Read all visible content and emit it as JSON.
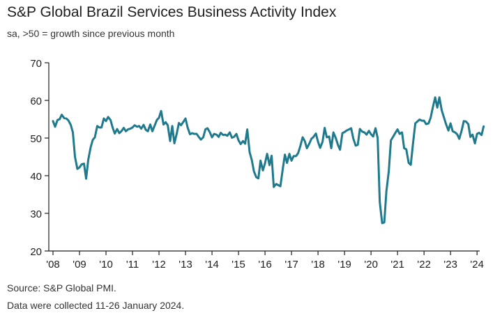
{
  "header": {
    "title": "S&P Global Brazil Services Business Activity Index",
    "subtitle": "sa, >50 = growth since previous month"
  },
  "footer": {
    "source": "Source: S&P Global PMI.",
    "note": "Data were collected 11-26 January 2024."
  },
  "colors": {
    "line": "#1e7a8c",
    "axis": "#1f1f1f",
    "grid": "#d9d9d9"
  },
  "chart_data": {
    "type": "line",
    "title": "S&P Global Brazil Services Business Activity Index",
    "subtitle": "sa, >50 = growth since previous month",
    "xlabel": "",
    "ylabel": "",
    "ylim": [
      20,
      70
    ],
    "xlim": [
      2008.0,
      2024.1
    ],
    "grid": false,
    "legend": "none",
    "x_ticks": [
      {
        "value": 2008,
        "label": "'08"
      },
      {
        "value": 2009,
        "label": "'09"
      },
      {
        "value": 2010,
        "label": "'10"
      },
      {
        "value": 2011,
        "label": "'11"
      },
      {
        "value": 2012,
        "label": "'12"
      },
      {
        "value": 2013,
        "label": "'13"
      },
      {
        "value": 2014,
        "label": "'14"
      },
      {
        "value": 2015,
        "label": "'15"
      },
      {
        "value": 2016,
        "label": "'16"
      },
      {
        "value": 2017,
        "label": "'17"
      },
      {
        "value": 2018,
        "label": "'18"
      },
      {
        "value": 2019,
        "label": "'19"
      },
      {
        "value": 2020,
        "label": "'20"
      },
      {
        "value": 2021,
        "label": "'21"
      },
      {
        "value": 2022,
        "label": "'22"
      },
      {
        "value": 2023,
        "label": "'23"
      },
      {
        "value": 2024,
        "label": "'24"
      }
    ],
    "y_ticks": [
      20,
      30,
      40,
      50,
      60,
      70
    ],
    "series": [
      {
        "color": "#1e7a8c",
        "points": [
          [
            2008.0,
            54.5
          ],
          [
            2008.08,
            53.0
          ],
          [
            2008.17,
            54.8
          ],
          [
            2008.25,
            55.0
          ],
          [
            2008.33,
            56.2
          ],
          [
            2008.42,
            55.3
          ],
          [
            2008.5,
            55.2
          ],
          [
            2008.58,
            54.7
          ],
          [
            2008.67,
            53.5
          ],
          [
            2008.75,
            51.5
          ],
          [
            2008.83,
            45.0
          ],
          [
            2008.92,
            41.8
          ],
          [
            2009.0,
            42.2
          ],
          [
            2009.08,
            43.0
          ],
          [
            2009.17,
            43.2
          ],
          [
            2009.25,
            39.2
          ],
          [
            2009.33,
            44.2
          ],
          [
            2009.42,
            47.5
          ],
          [
            2009.5,
            49.5
          ],
          [
            2009.58,
            50.2
          ],
          [
            2009.67,
            53.2
          ],
          [
            2009.75,
            52.8
          ],
          [
            2009.83,
            52.8
          ],
          [
            2009.92,
            55.2
          ],
          [
            2010.0,
            54.5
          ],
          [
            2010.08,
            55.6
          ],
          [
            2010.17,
            54.8
          ],
          [
            2010.25,
            52.8
          ],
          [
            2010.33,
            51.2
          ],
          [
            2010.42,
            52.4
          ],
          [
            2010.5,
            51.3
          ],
          [
            2010.58,
            51.8
          ],
          [
            2010.67,
            52.7
          ],
          [
            2010.75,
            51.8
          ],
          [
            2010.83,
            52.3
          ],
          [
            2010.92,
            52.5
          ],
          [
            2011.0,
            52.8
          ],
          [
            2011.08,
            53.4
          ],
          [
            2011.17,
            53.0
          ],
          [
            2011.25,
            53.2
          ],
          [
            2011.33,
            52.5
          ],
          [
            2011.42,
            53.5
          ],
          [
            2011.5,
            52.2
          ],
          [
            2011.58,
            51.8
          ],
          [
            2011.67,
            53.6
          ],
          [
            2011.75,
            51.8
          ],
          [
            2011.83,
            53.2
          ],
          [
            2011.92,
            54.8
          ],
          [
            2012.0,
            55.4
          ],
          [
            2012.08,
            57.2
          ],
          [
            2012.17,
            53.6
          ],
          [
            2012.25,
            54.2
          ],
          [
            2012.33,
            53.4
          ],
          [
            2012.42,
            49.2
          ],
          [
            2012.5,
            53.2
          ],
          [
            2012.58,
            48.6
          ],
          [
            2012.67,
            51.2
          ],
          [
            2012.75,
            54.0
          ],
          [
            2012.83,
            53.4
          ],
          [
            2012.92,
            54.3
          ],
          [
            2013.0,
            55.2
          ],
          [
            2013.08,
            52.8
          ],
          [
            2013.17,
            51.0
          ],
          [
            2013.25,
            51.3
          ],
          [
            2013.33,
            51.1
          ],
          [
            2013.42,
            51.1
          ],
          [
            2013.5,
            50.3
          ],
          [
            2013.58,
            49.6
          ],
          [
            2013.67,
            50.2
          ],
          [
            2013.75,
            52.3
          ],
          [
            2013.83,
            52.6
          ],
          [
            2013.92,
            51.5
          ],
          [
            2014.0,
            50.2
          ],
          [
            2014.08,
            51.1
          ],
          [
            2014.17,
            50.9
          ],
          [
            2014.25,
            50.3
          ],
          [
            2014.33,
            51.4
          ],
          [
            2014.42,
            50.8
          ],
          [
            2014.5,
            50.9
          ],
          [
            2014.58,
            50.6
          ],
          [
            2014.67,
            51.5
          ],
          [
            2014.75,
            50.1
          ],
          [
            2014.83,
            50.3
          ],
          [
            2014.92,
            51.1
          ],
          [
            2015.0,
            49.4
          ],
          [
            2015.08,
            48.4
          ],
          [
            2015.17,
            49.2
          ],
          [
            2015.25,
            48.5
          ],
          [
            2015.33,
            52.3
          ],
          [
            2015.42,
            46.2
          ],
          [
            2015.5,
            44.2
          ],
          [
            2015.58,
            41.2
          ],
          [
            2015.67,
            39.6
          ],
          [
            2015.75,
            39.3
          ],
          [
            2015.83,
            44.0
          ],
          [
            2015.92,
            41.4
          ],
          [
            2016.0,
            43.3
          ],
          [
            2016.08,
            45.8
          ],
          [
            2016.17,
            42.8
          ],
          [
            2016.25,
            45.3
          ],
          [
            2016.33,
            37.0
          ],
          [
            2016.42,
            37.8
          ],
          [
            2016.5,
            37.5
          ],
          [
            2016.58,
            37.2
          ],
          [
            2016.67,
            41.8
          ],
          [
            2016.75,
            45.6
          ],
          [
            2016.83,
            43.4
          ],
          [
            2016.92,
            45.8
          ],
          [
            2017.0,
            44.0
          ],
          [
            2017.08,
            45.2
          ],
          [
            2017.17,
            45.2
          ],
          [
            2017.25,
            46.0
          ],
          [
            2017.33,
            47.8
          ],
          [
            2017.42,
            50.2
          ],
          [
            2017.5,
            49.2
          ],
          [
            2017.58,
            47.3
          ],
          [
            2017.67,
            48.5
          ],
          [
            2017.75,
            49.8
          ],
          [
            2017.83,
            50.3
          ],
          [
            2017.92,
            51.2
          ],
          [
            2018.0,
            49.0
          ],
          [
            2018.08,
            47.4
          ],
          [
            2018.17,
            49.0
          ],
          [
            2018.25,
            52.7
          ],
          [
            2018.33,
            50.2
          ],
          [
            2018.42,
            50.4
          ],
          [
            2018.5,
            47.3
          ],
          [
            2018.58,
            51.5
          ],
          [
            2018.67,
            50.0
          ],
          [
            2018.75,
            48.2
          ],
          [
            2018.83,
            46.9
          ],
          [
            2018.92,
            51.3
          ],
          [
            2019.0,
            51.6
          ],
          [
            2019.08,
            52.0
          ],
          [
            2019.17,
            52.3
          ],
          [
            2019.25,
            52.6
          ],
          [
            2019.33,
            49.9
          ],
          [
            2019.42,
            48.0
          ],
          [
            2019.5,
            48.2
          ],
          [
            2019.58,
            52.4
          ],
          [
            2019.67,
            51.7
          ],
          [
            2019.75,
            51.5
          ],
          [
            2019.83,
            50.9
          ],
          [
            2019.92,
            51.9
          ],
          [
            2020.0,
            51.0
          ],
          [
            2020.08,
            50.4
          ],
          [
            2020.17,
            52.6
          ],
          [
            2020.25,
            50.0
          ],
          [
            2020.33,
            33.0
          ],
          [
            2020.42,
            27.4
          ],
          [
            2020.5,
            27.6
          ],
          [
            2020.58,
            35.9
          ],
          [
            2020.67,
            41.2
          ],
          [
            2020.75,
            49.4
          ],
          [
            2020.83,
            50.3
          ],
          [
            2020.92,
            51.4
          ],
          [
            2021.0,
            52.3
          ],
          [
            2021.08,
            51.1
          ],
          [
            2021.17,
            51.5
          ],
          [
            2021.25,
            47.3
          ],
          [
            2021.33,
            47.0
          ],
          [
            2021.42,
            43.4
          ],
          [
            2021.5,
            42.9
          ],
          [
            2021.58,
            48.3
          ],
          [
            2021.67,
            53.9
          ],
          [
            2021.75,
            54.4
          ],
          [
            2021.83,
            54.9
          ],
          [
            2021.92,
            54.6
          ],
          [
            2022.0,
            54.6
          ],
          [
            2022.08,
            53.7
          ],
          [
            2022.17,
            53.9
          ],
          [
            2022.25,
            55.4
          ],
          [
            2022.33,
            58.1
          ],
          [
            2022.42,
            60.8
          ],
          [
            2022.5,
            58.1
          ],
          [
            2022.58,
            60.8
          ],
          [
            2022.67,
            57.3
          ],
          [
            2022.75,
            55.5
          ],
          [
            2022.83,
            53.7
          ],
          [
            2022.92,
            52.0
          ],
          [
            2023.0,
            53.9
          ],
          [
            2023.08,
            51.8
          ],
          [
            2023.17,
            51.5
          ],
          [
            2023.25,
            51.0
          ],
          [
            2023.33,
            49.8
          ],
          [
            2023.42,
            52.0
          ],
          [
            2023.5,
            54.5
          ],
          [
            2023.58,
            54.4
          ],
          [
            2023.67,
            53.7
          ],
          [
            2023.75,
            50.3
          ],
          [
            2023.83,
            50.9
          ],
          [
            2023.92,
            48.6
          ],
          [
            2024.0,
            51.1
          ],
          [
            2024.08,
            51.4
          ],
          [
            2024.17,
            50.8
          ],
          [
            2024.25,
            53.1
          ]
        ]
      }
    ]
  }
}
